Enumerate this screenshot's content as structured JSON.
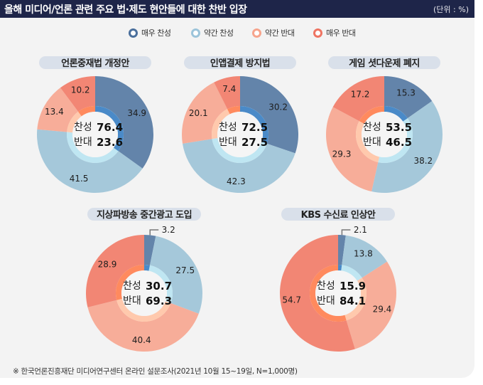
{
  "header": {
    "title": "올해 미디어/언론 관련 주요 법·제도 현안들에 대한 찬반 입장",
    "unit": "(단위 : %)"
  },
  "legend": [
    {
      "label": "매우 찬성",
      "color": "#5a7fa8",
      "ring": "#4a6f9c"
    },
    {
      "label": "약간 찬성",
      "color": "#a5c8da",
      "ring": "#9cc4da"
    },
    {
      "label": "약간 반대",
      "color": "#f6ad98",
      "ring": "#f6a48c"
    },
    {
      "label": "매우 반대",
      "color": "#f08472",
      "ring": "#ee7462"
    }
  ],
  "colors": {
    "strong_favor": "#6384aa",
    "weak_favor": "#a5c8da",
    "weak_oppose": "#f7ad99",
    "strong_oppose": "#f28674",
    "inner_favor": "#4a8ac8",
    "inner_oppose": "#ff8a5e",
    "inner_favor_light": "#bfe6f2",
    "inner_oppose_light": "#ffc9ad",
    "header_bg": "#1e2549",
    "panel_bg": "#f3f3f3"
  },
  "center_labels": {
    "favor": "찬성",
    "oppose": "반대"
  },
  "chart_data": [
    {
      "type": "pie",
      "title": "언론중재법 개정안",
      "categories": [
        "매우 찬성",
        "약간 찬성",
        "약간 반대",
        "매우 반대"
      ],
      "values": [
        34.9,
        41.5,
        13.4,
        10.2
      ],
      "favor_total": 76.4,
      "oppose_total": 23.6
    },
    {
      "type": "pie",
      "title": "인앱결제 방지법",
      "categories": [
        "매우 찬성",
        "약간 찬성",
        "약간 반대",
        "매우 반대"
      ],
      "values": [
        30.2,
        42.3,
        20.1,
        7.4
      ],
      "favor_total": 72.5,
      "oppose_total": 27.5
    },
    {
      "type": "pie",
      "title": "게임 셧다운제 폐지",
      "categories": [
        "매우 찬성",
        "약간 찬성",
        "약간 반대",
        "매우 반대"
      ],
      "values": [
        15.3,
        38.2,
        29.3,
        17.2
      ],
      "favor_total": 53.5,
      "oppose_total": 46.5
    },
    {
      "type": "pie",
      "title": "지상파방송 중간광고 도입",
      "categories": [
        "매우 찬성",
        "약간 찬성",
        "약간 반대",
        "매우 반대"
      ],
      "values": [
        3.2,
        27.5,
        40.4,
        28.9
      ],
      "favor_total": 30.7,
      "oppose_total": 69.3
    },
    {
      "type": "pie",
      "title": "KBS 수신료 인상안",
      "categories": [
        "매우 찬성",
        "약간 찬성",
        "약간 반대",
        "매우 반대"
      ],
      "values": [
        2.1,
        13.8,
        29.4,
        54.7
      ],
      "favor_total": 15.9,
      "oppose_total": 84.1
    }
  ],
  "footnote": "※ 한국언론진흥재단 미디어연구센터 온라인 설문조사(2021년 10월 15~19일, N=1,000명)"
}
